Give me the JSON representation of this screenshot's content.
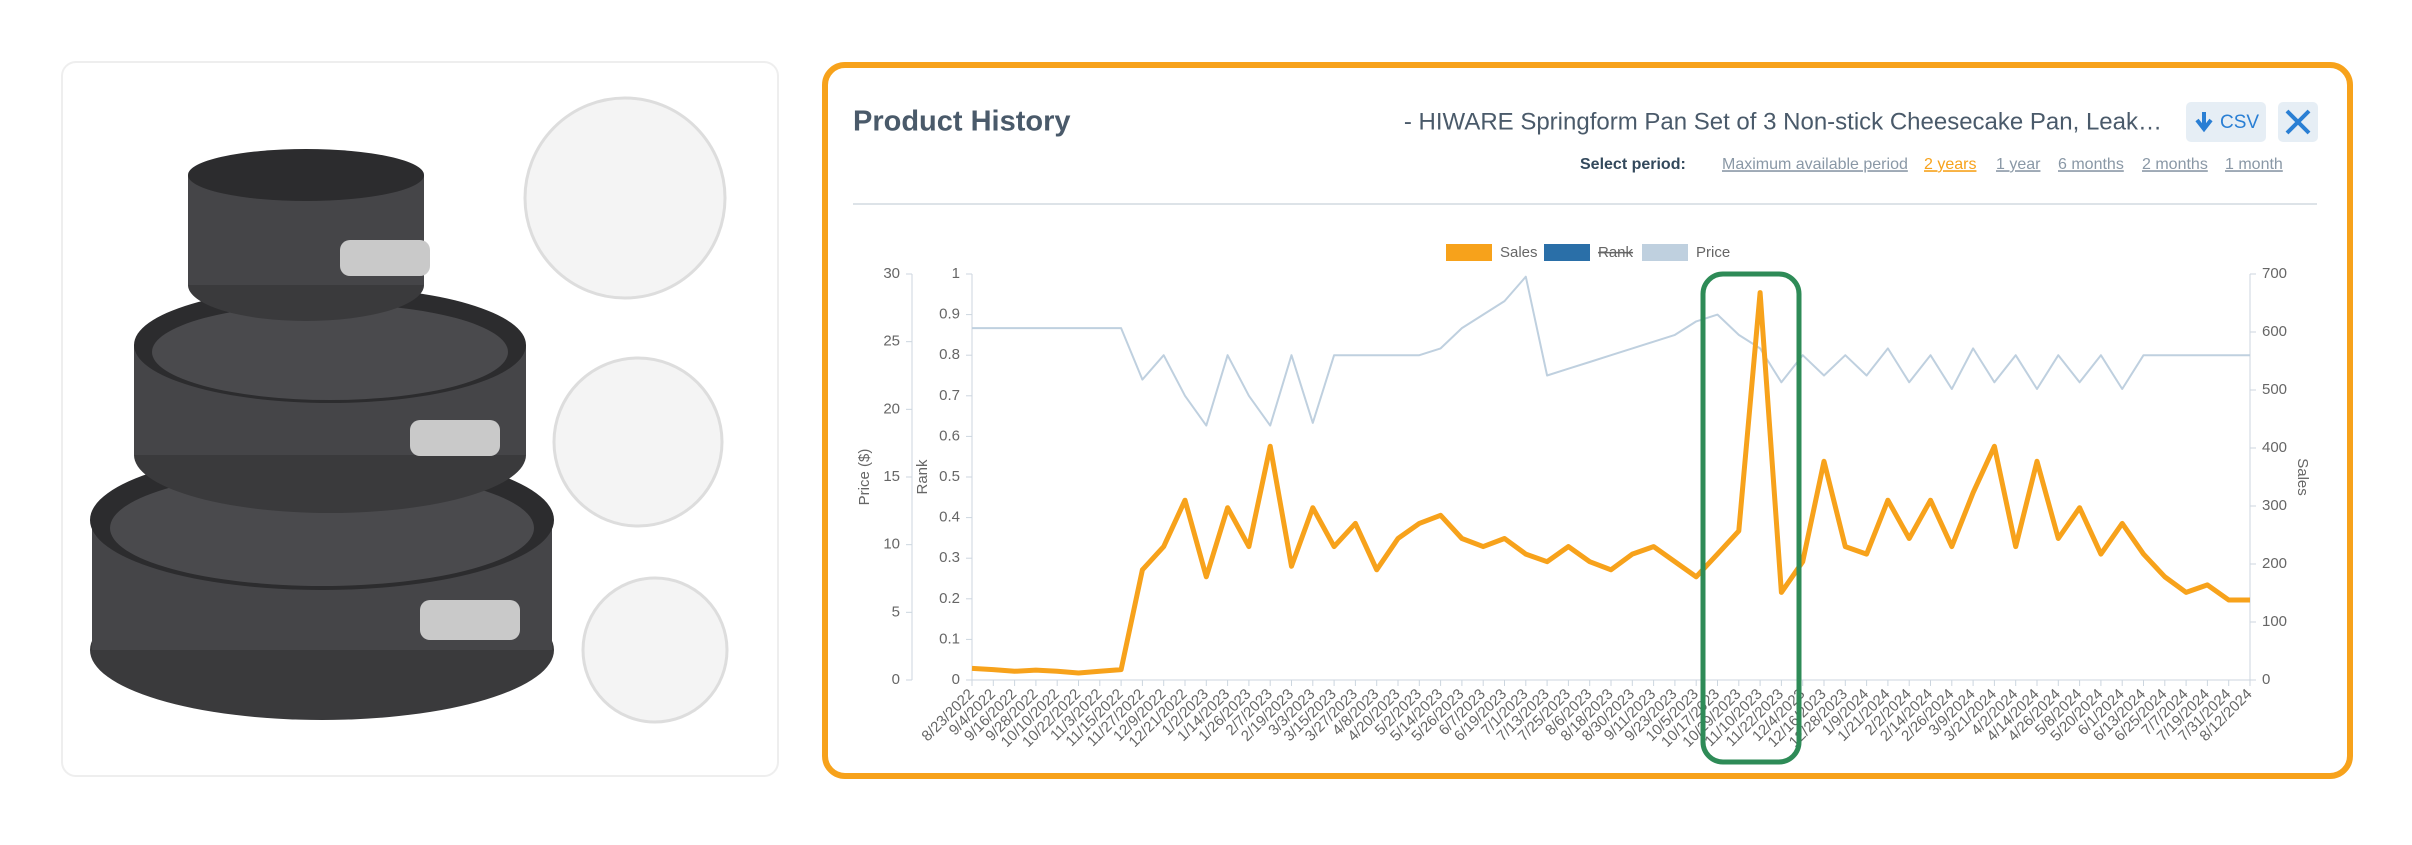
{
  "header": {
    "title": "Product History",
    "product": "- HIWARE Springform Pan Set of 3 Non-stick Cheesecake Pan, Leak…",
    "csv": "CSV"
  },
  "period": {
    "label": "Select period:",
    "options": [
      "Maximum available period",
      "2 years",
      "1 year",
      "6 months",
      "2 months",
      "1 month"
    ],
    "selected": 1
  },
  "chart_data": {
    "type": "line",
    "x": [
      "8/23/2022",
      "9/4/2022",
      "9/16/2022",
      "9/28/2022",
      "10/10/2022",
      "10/22/2022",
      "11/3/2022",
      "11/15/2022",
      "11/27/2022",
      "12/9/2022",
      "12/21/2022",
      "1/2/2023",
      "1/14/2023",
      "1/26/2023",
      "2/7/2023",
      "2/19/2023",
      "3/3/2023",
      "3/15/2023",
      "3/27/2023",
      "4/8/2023",
      "4/20/2023",
      "5/2/2023",
      "5/14/2023",
      "5/26/2023",
      "6/7/2023",
      "6/19/2023",
      "7/1/2023",
      "7/13/2023",
      "7/25/2023",
      "8/6/2023",
      "8/18/2023",
      "8/30/2023",
      "9/11/2023",
      "9/23/2023",
      "10/5/2023",
      "10/17/2023",
      "10/29/2023",
      "11/10/2023",
      "11/22/2023",
      "12/4/2023",
      "12/16/2023",
      "12/28/2023",
      "1/9/2024",
      "1/21/2024",
      "2/2/2024",
      "2/14/2024",
      "2/26/2024",
      "3/9/2024",
      "3/21/2024",
      "4/2/2024",
      "4/14/2024",
      "4/26/2024",
      "5/8/2024",
      "5/20/2024",
      "6/1/2024",
      "6/13/2024",
      "6/25/2024",
      "7/7/2024",
      "7/19/2024",
      "7/31/2024",
      "8/12/2024"
    ],
    "series": [
      {
        "name": "Sales",
        "color": "#f7a21b",
        "axis": "y2",
        "values": [
          20,
          18,
          15,
          17,
          15,
          12,
          15,
          18,
          190,
          230,
          310,
          178,
          297,
          230,
          403,
          196,
          297,
          230,
          270,
          190,
          244,
          270,
          284,
          244,
          230,
          244,
          217,
          204,
          230,
          204,
          190,
          217,
          230,
          204,
          178,
          217,
          257,
          668,
          151,
          204,
          377,
          230,
          217,
          310,
          244,
          310,
          230,
          323,
          403,
          230,
          377,
          244,
          297,
          217,
          270,
          217,
          178,
          151,
          164,
          138,
          138
        ]
      },
      {
        "name": "Rank",
        "color": "#2a6fa8",
        "axis": "y3",
        "hidden": true
      },
      {
        "name": "Price",
        "color": "#bfd0df",
        "axis": "y",
        "values": [
          26,
          26,
          26,
          26,
          26,
          26,
          26,
          26,
          22.2,
          24,
          21,
          18.8,
          24,
          21,
          18.8,
          24,
          19,
          24,
          24,
          24,
          24,
          24,
          24.5,
          26,
          27,
          28,
          29.8,
          22.5,
          23,
          23.5,
          24,
          24.5,
          25,
          25.5,
          26.5,
          27,
          25.5,
          24.5,
          22,
          24,
          22.5,
          24,
          22.5,
          24.5,
          22,
          24,
          21.5,
          24.5,
          22,
          24,
          21.5,
          24,
          22,
          24,
          21.5,
          24,
          24,
          24,
          24,
          24,
          24
        ]
      }
    ],
    "ylabel": "Price ($)",
    "ylim": [
      0,
      30
    ],
    "yticks": [
      0,
      5,
      10,
      15,
      20,
      25,
      30
    ],
    "y3label": "Rank",
    "y3lim": [
      0,
      1
    ],
    "y3ticks": [
      0,
      0.1,
      0.2,
      0.3,
      0.4,
      0.5,
      0.6,
      0.7,
      0.8,
      0.9,
      1
    ],
    "y2label": "Sales",
    "y2lim": [
      0,
      700
    ],
    "y2ticks": [
      0,
      100,
      200,
      300,
      400,
      500,
      600,
      700
    ]
  }
}
